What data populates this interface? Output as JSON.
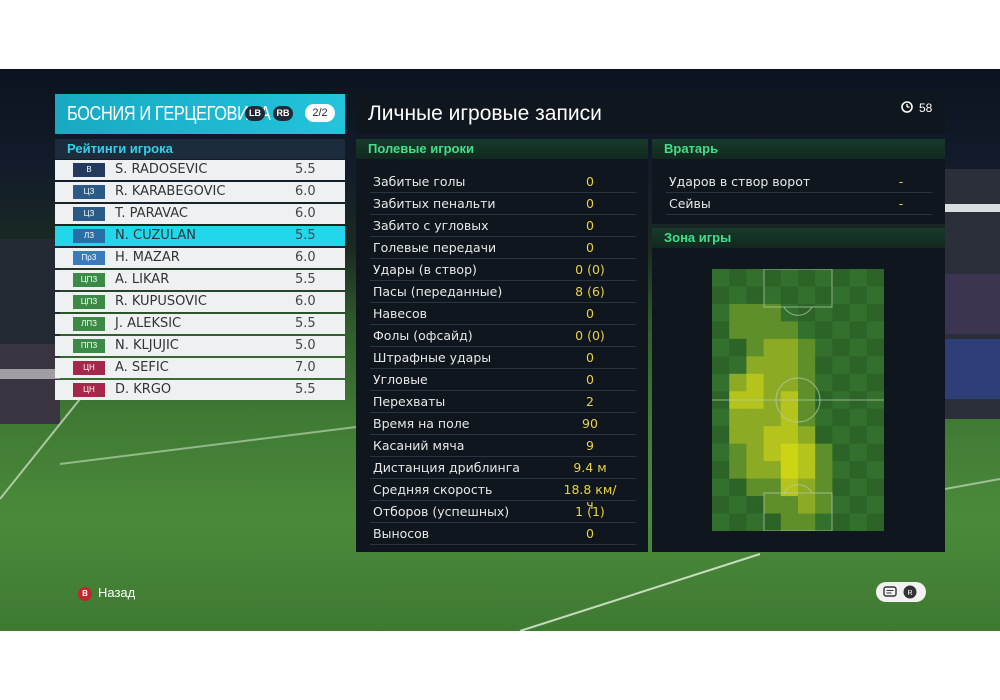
{
  "team": {
    "name": "БОСНИЯ И ГЕРЦЕГОВИНА",
    "lb": "LB",
    "rb": "RB",
    "page": "2/2"
  },
  "ratings_title": "Рейтинги игрока",
  "players": [
    {
      "pos": "В",
      "name": "S. RADOSEVIC",
      "rating": "5.5",
      "color": "#23395d"
    },
    {
      "pos": "ЦЗ",
      "name": "R. KARABEGOVIC",
      "rating": "6.0",
      "color": "#2a5a86"
    },
    {
      "pos": "ЦЗ",
      "name": "T. PARAVAC",
      "rating": "6.0",
      "color": "#2a5a86"
    },
    {
      "pos": "ЛЗ",
      "name": "N. CUZULAN",
      "rating": "5.5",
      "color": "#2a6ea8"
    },
    {
      "pos": "ПрЗ",
      "name": "H. MAZAR",
      "rating": "6.0",
      "color": "#3a7bbf"
    },
    {
      "pos": "ЦПЗ",
      "name": "A. LIKAR",
      "rating": "5.5",
      "color": "#3b8a45"
    },
    {
      "pos": "ЦПЗ",
      "name": "R. KUPUSOVIC",
      "rating": "6.0",
      "color": "#3b8a45"
    },
    {
      "pos": "ЛПЗ",
      "name": "J. ALEKSIC",
      "rating": "5.5",
      "color": "#3b8a45"
    },
    {
      "pos": "ППЗ",
      "name": "N. KLJUJIC",
      "rating": "5.0",
      "color": "#3b8a45"
    },
    {
      "pos": "ЦН",
      "name": "A. SEFIC",
      "rating": "7.0",
      "color": "#a4284a"
    },
    {
      "pos": "ЦН",
      "name": "D. KRGO",
      "rating": "5.5",
      "color": "#a4284a"
    }
  ],
  "selected_index": 3,
  "main_title": "Личные игровые записи",
  "timer": "58",
  "field_players": {
    "title": "Полевые игроки",
    "stats": [
      {
        "label": "Забитые голы",
        "value": "0"
      },
      {
        "label": "Забитых пенальти",
        "value": "0"
      },
      {
        "label": "Забито с угловых",
        "value": "0"
      },
      {
        "label": "Голевые передачи",
        "value": "0"
      },
      {
        "label": "Удары (в створ)",
        "value": "0 (0)"
      },
      {
        "label": "Пасы (переданные)",
        "value": "8 (6)"
      },
      {
        "label": "Навесов",
        "value": "0"
      },
      {
        "label": "Фолы (офсайд)",
        "value": "0 (0)"
      },
      {
        "label": "Штрафные удары",
        "value": "0"
      },
      {
        "label": "Угловые",
        "value": "0"
      },
      {
        "label": "Перехваты",
        "value": "2"
      },
      {
        "label": "Время на поле",
        "value": "90"
      },
      {
        "label": "Касаний мяча",
        "value": "9"
      },
      {
        "label": "Дистанция дриблинга",
        "value": "9.4 м"
      },
      {
        "label": "Средняя скорость",
        "value": "18.8 км/ч"
      },
      {
        "label": "Отборов (успешных)",
        "value": "1 (1)"
      },
      {
        "label": "Выносов",
        "value": "0"
      }
    ]
  },
  "goalkeeper": {
    "title": "Вратарь",
    "stats": [
      {
        "label": "Ударов в створ ворот",
        "value": "-"
      },
      {
        "label": "Сейвы",
        "value": "-"
      }
    ]
  },
  "zone": {
    "title": "Зона игры",
    "heatmap": [
      [
        0,
        0,
        0,
        0,
        0,
        0,
        0,
        0,
        0,
        0
      ],
      [
        0,
        0,
        0,
        0,
        0,
        0,
        0,
        0,
        0,
        0
      ],
      [
        0,
        1,
        1,
        1,
        0,
        0,
        0,
        0,
        0,
        0
      ],
      [
        0,
        1,
        1,
        1,
        1,
        0,
        0,
        0,
        0,
        0
      ],
      [
        0,
        0,
        1,
        2,
        2,
        1,
        0,
        0,
        0,
        0
      ],
      [
        0,
        0,
        2,
        2,
        2,
        1,
        0,
        0,
        0,
        0
      ],
      [
        0,
        2,
        3,
        2,
        2,
        1,
        0,
        0,
        0,
        0
      ],
      [
        0,
        3,
        3,
        2,
        3,
        1,
        0,
        0,
        0,
        0
      ],
      [
        0,
        2,
        2,
        2,
        3,
        1,
        0,
        0,
        0,
        0
      ],
      [
        0,
        2,
        2,
        3,
        3,
        2,
        0,
        0,
        0,
        0
      ],
      [
        0,
        1,
        2,
        3,
        4,
        3,
        1,
        0,
        0,
        0
      ],
      [
        0,
        1,
        2,
        2,
        4,
        3,
        1,
        0,
        0,
        0
      ],
      [
        0,
        0,
        1,
        1,
        3,
        2,
        1,
        0,
        0,
        0
      ],
      [
        0,
        0,
        0,
        1,
        1,
        2,
        1,
        0,
        0,
        0
      ],
      [
        0,
        0,
        0,
        0,
        1,
        1,
        0,
        0,
        0,
        0
      ]
    ]
  },
  "back_label": "Назад",
  "back_button": "B",
  "colors": {
    "accent": "#22c4dc",
    "stat_value": "#e8d14a",
    "section": "#40e08a"
  }
}
